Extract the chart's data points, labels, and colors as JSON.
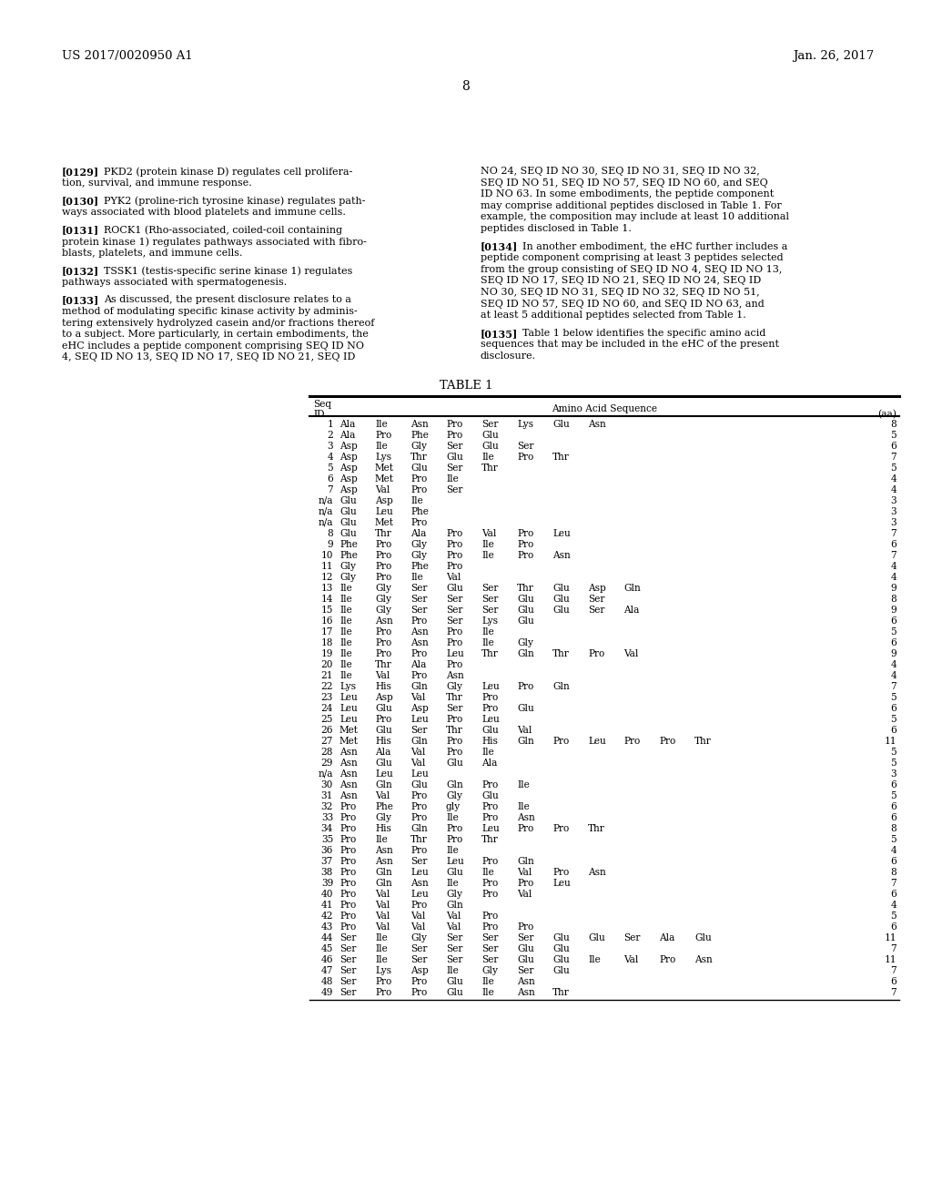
{
  "page_header_left": "US 2017/0020950 A1",
  "page_header_right": "Jan. 26, 2017",
  "page_number": "8",
  "background_color": "#ffffff",
  "text_color": "#000000",
  "left_paragraphs": [
    {
      "tag": "[0129]",
      "lines": [
        "PKD2 (protein kinase D) regulates cell prolifera-",
        "tion, survival, and immune response."
      ]
    },
    {
      "tag": "[0130]",
      "lines": [
        "PYK2 (proline-rich tyrosine kinase) regulates path-",
        "ways associated with blood platelets and immune cells."
      ]
    },
    {
      "tag": "[0131]",
      "lines": [
        "ROCK1 (Rho-associated, coiled-coil containing",
        "protein kinase 1) regulates pathways associated with fibro-",
        "blasts, platelets, and immune cells."
      ]
    },
    {
      "tag": "[0132]",
      "lines": [
        "TSSK1 (testis-specific serine kinase 1) regulates",
        "pathways associated with spermatogenesis."
      ]
    },
    {
      "tag": "[0133]",
      "lines": [
        "As discussed, the present disclosure relates to a",
        "method of modulating specific kinase activity by adminis-",
        "tering extensively hydrolyzed casein and/or fractions thereof",
        "to a subject. More particularly, in certain embodiments, the",
        "eHC includes a peptide component comprising SEQ ID NO",
        "4, SEQ ID NO 13, SEQ ID NO 17, SEQ ID NO 21, SEQ ID"
      ]
    }
  ],
  "right_paragraphs": [
    {
      "tag": "",
      "lines": [
        "NO 24, SEQ ID NO 30, SEQ ID NO 31, SEQ ID NO 32,",
        "SEQ ID NO 51, SEQ ID NO 57, SEQ ID NO 60, and SEQ",
        "ID NO 63. In some embodiments, the peptide component",
        "may comprise additional peptides disclosed in Table 1. For",
        "example, the composition may include at least 10 additional",
        "peptides disclosed in Table 1."
      ]
    },
    {
      "tag": "[0134]",
      "lines": [
        "In another embodiment, the eHC further includes a",
        "peptide component comprising at least 3 peptides selected",
        "from the group consisting of SEQ ID NO 4, SEQ ID NO 13,",
        "SEQ ID NO 17, SEQ ID NO 21, SEQ ID NO 24, SEQ ID",
        "NO 30, SEQ ID NO 31, SEQ ID NO 32, SEQ ID NO 51,",
        "SEQ ID NO 57, SEQ ID NO 60, and SEQ ID NO 63, and",
        "at least 5 additional peptides selected from Table 1."
      ]
    },
    {
      "tag": "[0135]",
      "lines": [
        "Table 1 below identifies the specific amino acid",
        "sequences that may be included in the eHC of the present",
        "disclosure."
      ]
    }
  ],
  "table_title": "TABLE 1",
  "table_rows": [
    [
      "1",
      [
        "Ala",
        "Ile",
        "Asn",
        "Pro",
        "Ser",
        "Lys",
        "Glu",
        "Asn"
      ],
      "8"
    ],
    [
      "2",
      [
        "Ala",
        "Pro",
        "Phe",
        "Pro",
        "Glu"
      ],
      "5"
    ],
    [
      "3",
      [
        "Asp",
        "Ile",
        "Gly",
        "Ser",
        "Glu",
        "Ser"
      ],
      "6"
    ],
    [
      "4",
      [
        "Asp",
        "Lys",
        "Thr",
        "Glu",
        "Ile",
        "Pro",
        "Thr"
      ],
      "7"
    ],
    [
      "5",
      [
        "Asp",
        "Met",
        "Glu",
        "Ser",
        "Thr"
      ],
      "5"
    ],
    [
      "6",
      [
        "Asp",
        "Met",
        "Pro",
        "Ile"
      ],
      "4"
    ],
    [
      "7",
      [
        "Asp",
        "Val",
        "Pro",
        "Ser"
      ],
      "4"
    ],
    [
      "n/a",
      [
        "Glu",
        "Asp",
        "Ile"
      ],
      "3"
    ],
    [
      "n/a",
      [
        "Glu",
        "Leu",
        "Phe"
      ],
      "3"
    ],
    [
      "n/a",
      [
        "Glu",
        "Met",
        "Pro"
      ],
      "3"
    ],
    [
      "8",
      [
        "Glu",
        "Thr",
        "Ala",
        "Pro",
        "Val",
        "Pro",
        "Leu"
      ],
      "7"
    ],
    [
      "9",
      [
        "Phe",
        "Pro",
        "Gly",
        "Pro",
        "Ile",
        "Pro"
      ],
      "6"
    ],
    [
      "10",
      [
        "Phe",
        "Pro",
        "Gly",
        "Pro",
        "Ile",
        "Pro",
        "Asn"
      ],
      "7"
    ],
    [
      "11",
      [
        "Gly",
        "Pro",
        "Phe",
        "Pro"
      ],
      "4"
    ],
    [
      "12",
      [
        "Gly",
        "Pro",
        "Ile",
        "Val"
      ],
      "4"
    ],
    [
      "13",
      [
        "Ile",
        "Gly",
        "Ser",
        "Glu",
        "Ser",
        "Thr",
        "Glu",
        "Asp",
        "Gln"
      ],
      "9"
    ],
    [
      "14",
      [
        "Ile",
        "Gly",
        "Ser",
        "Ser",
        "Ser",
        "Glu",
        "Glu",
        "Ser"
      ],
      "8"
    ],
    [
      "15",
      [
        "Ile",
        "Gly",
        "Ser",
        "Ser",
        "Ser",
        "Glu",
        "Glu",
        "Ser",
        "Ala"
      ],
      "9"
    ],
    [
      "16",
      [
        "Ile",
        "Asn",
        "Pro",
        "Ser",
        "Lys",
        "Glu"
      ],
      "6"
    ],
    [
      "17",
      [
        "Ile",
        "Pro",
        "Asn",
        "Pro",
        "Ile"
      ],
      "5"
    ],
    [
      "18",
      [
        "Ile",
        "Pro",
        "Asn",
        "Pro",
        "Ile",
        "Gly"
      ],
      "6"
    ],
    [
      "19",
      [
        "Ile",
        "Pro",
        "Pro",
        "Leu",
        "Thr",
        "Gln",
        "Thr",
        "Pro",
        "Val"
      ],
      "9"
    ],
    [
      "20",
      [
        "Ile",
        "Thr",
        "Ala",
        "Pro"
      ],
      "4"
    ],
    [
      "21",
      [
        "Ile",
        "Val",
        "Pro",
        "Asn"
      ],
      "4"
    ],
    [
      "22",
      [
        "Lys",
        "His",
        "Gln",
        "Gly",
        "Leu",
        "Pro",
        "Gln"
      ],
      "7"
    ],
    [
      "23",
      [
        "Leu",
        "Asp",
        "Val",
        "Thr",
        "Pro"
      ],
      "5"
    ],
    [
      "24",
      [
        "Leu",
        "Glu",
        "Asp",
        "Ser",
        "Pro",
        "Glu"
      ],
      "6"
    ],
    [
      "25",
      [
        "Leu",
        "Pro",
        "Leu",
        "Pro",
        "Leu"
      ],
      "5"
    ],
    [
      "26",
      [
        "Met",
        "Glu",
        "Ser",
        "Thr",
        "Glu",
        "Val"
      ],
      "6"
    ],
    [
      "27",
      [
        "Met",
        "His",
        "Gln",
        "Pro",
        "His",
        "Gln",
        "Pro",
        "Leu",
        "Pro",
        "Pro",
        "Thr"
      ],
      "11"
    ],
    [
      "28",
      [
        "Asn",
        "Ala",
        "Val",
        "Pro",
        "Ile"
      ],
      "5"
    ],
    [
      "29",
      [
        "Asn",
        "Glu",
        "Val",
        "Glu",
        "Ala"
      ],
      "5"
    ],
    [
      "n/a",
      [
        "Asn",
        "Leu",
        "Leu"
      ],
      "3"
    ],
    [
      "30",
      [
        "Asn",
        "Gln",
        "Glu",
        "Gln",
        "Pro",
        "Ile"
      ],
      "6"
    ],
    [
      "31",
      [
        "Asn",
        "Val",
        "Pro",
        "Gly",
        "Glu"
      ],
      "5"
    ],
    [
      "32",
      [
        "Pro",
        "Phe",
        "Pro",
        "gly",
        "Pro",
        "Ile"
      ],
      "6"
    ],
    [
      "33",
      [
        "Pro",
        "Gly",
        "Pro",
        "Ile",
        "Pro",
        "Asn"
      ],
      "6"
    ],
    [
      "34",
      [
        "Pro",
        "His",
        "Gln",
        "Pro",
        "Leu",
        "Pro",
        "Pro",
        "Thr"
      ],
      "8"
    ],
    [
      "35",
      [
        "Pro",
        "Ile",
        "Thr",
        "Pro",
        "Thr"
      ],
      "5"
    ],
    [
      "36",
      [
        "Pro",
        "Asn",
        "Pro",
        "Ile"
      ],
      "4"
    ],
    [
      "37",
      [
        "Pro",
        "Asn",
        "Ser",
        "Leu",
        "Pro",
        "Gln"
      ],
      "6"
    ],
    [
      "38",
      [
        "Pro",
        "Gln",
        "Leu",
        "Glu",
        "Ile",
        "Val",
        "Pro",
        "Asn"
      ],
      "8"
    ],
    [
      "39",
      [
        "Pro",
        "Gln",
        "Asn",
        "Ile",
        "Pro",
        "Pro",
        "Leu"
      ],
      "7"
    ],
    [
      "40",
      [
        "Pro",
        "Val",
        "Leu",
        "Gly",
        "Pro",
        "Val"
      ],
      "6"
    ],
    [
      "41",
      [
        "Pro",
        "Val",
        "Pro",
        "Gln"
      ],
      "4"
    ],
    [
      "42",
      [
        "Pro",
        "Val",
        "Val",
        "Val",
        "Pro"
      ],
      "5"
    ],
    [
      "43",
      [
        "Pro",
        "Val",
        "Val",
        "Val",
        "Pro",
        "Pro"
      ],
      "6"
    ],
    [
      "44",
      [
        "Ser",
        "Ile",
        "Gly",
        "Ser",
        "Ser",
        "Ser",
        "Glu",
        "Glu",
        "Ser",
        "Ala",
        "Glu"
      ],
      "11"
    ],
    [
      "45",
      [
        "Ser",
        "Ile",
        "Ser",
        "Ser",
        "Ser",
        "Glu",
        "Glu"
      ],
      "7"
    ],
    [
      "46",
      [
        "Ser",
        "Ile",
        "Ser",
        "Ser",
        "Ser",
        "Glu",
        "Glu",
        "Ile",
        "Val",
        "Pro",
        "Asn"
      ],
      "11"
    ],
    [
      "47",
      [
        "Ser",
        "Lys",
        "Asp",
        "Ile",
        "Gly",
        "Ser",
        "Glu"
      ],
      "7"
    ],
    [
      "48",
      [
        "Ser",
        "Pro",
        "Pro",
        "Glu",
        "Ile",
        "Asn"
      ],
      "6"
    ],
    [
      "49",
      [
        "Ser",
        "Pro",
        "Pro",
        "Glu",
        "Ile",
        "Asn",
        "Thr"
      ],
      "7"
    ]
  ]
}
